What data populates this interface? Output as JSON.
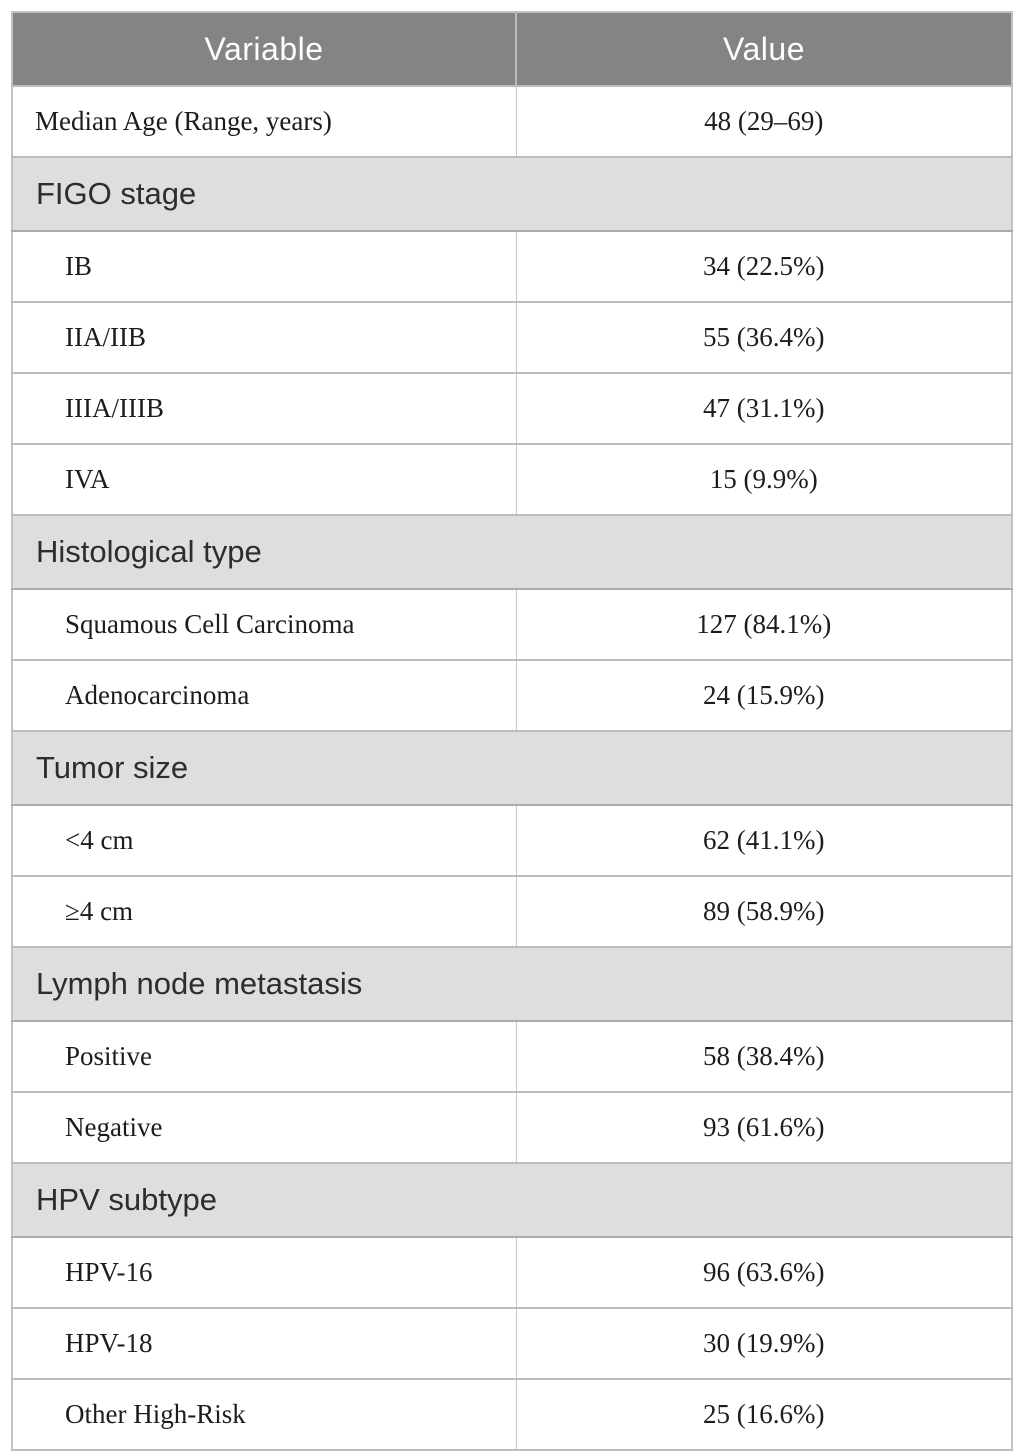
{
  "table": {
    "columns": [
      "Variable",
      "Value"
    ],
    "rows": [
      {
        "type": "data",
        "indent": false,
        "label": "Median Age (Range, years)",
        "value": "48 (29–69)"
      },
      {
        "type": "section",
        "label": "FIGO stage"
      },
      {
        "type": "data",
        "indent": true,
        "label": "IB",
        "value": "34 (22.5%)"
      },
      {
        "type": "data",
        "indent": true,
        "label": "IIA/IIB",
        "value": "55 (36.4%)"
      },
      {
        "type": "data",
        "indent": true,
        "label": "IIIA/IIIB",
        "value": "47 (31.1%)"
      },
      {
        "type": "data",
        "indent": true,
        "label": "IVA",
        "value": "15 (9.9%)"
      },
      {
        "type": "section",
        "label": "Histological type"
      },
      {
        "type": "data",
        "indent": true,
        "label": "Squamous Cell Carcinoma",
        "value": "127 (84.1%)"
      },
      {
        "type": "data",
        "indent": true,
        "label": "Adenocarcinoma",
        "value": "24 (15.9%)"
      },
      {
        "type": "section",
        "label": "Tumor size"
      },
      {
        "type": "data",
        "indent": true,
        "label": "<4 cm",
        "value": "62 (41.1%)"
      },
      {
        "type": "data",
        "indent": true,
        "label": "≥4 cm",
        "value": "89 (58.9%)"
      },
      {
        "type": "section",
        "label": "Lymph node metastasis"
      },
      {
        "type": "data",
        "indent": true,
        "label": "Positive",
        "value": "58 (38.4%)"
      },
      {
        "type": "data",
        "indent": true,
        "label": "Negative",
        "value": "93 (61.6%)"
      },
      {
        "type": "section",
        "label": "HPV subtype"
      },
      {
        "type": "data",
        "indent": true,
        "label": "HPV-16",
        "value": "96 (63.6%)"
      },
      {
        "type": "data",
        "indent": true,
        "label": "HPV-18",
        "value": "30 (19.9%)"
      },
      {
        "type": "data",
        "indent": true,
        "label": "Other High-Risk",
        "value": "25 (16.6%)"
      }
    ]
  },
  "colors": {
    "header_background": "#848484",
    "header_text": "#fdfdfd",
    "section_background": "#dedede",
    "section_text": "#2d2d2d",
    "data_text": "#1c1c1c",
    "row_border": "#bdbdbd",
    "page_background": "#ffffff"
  }
}
